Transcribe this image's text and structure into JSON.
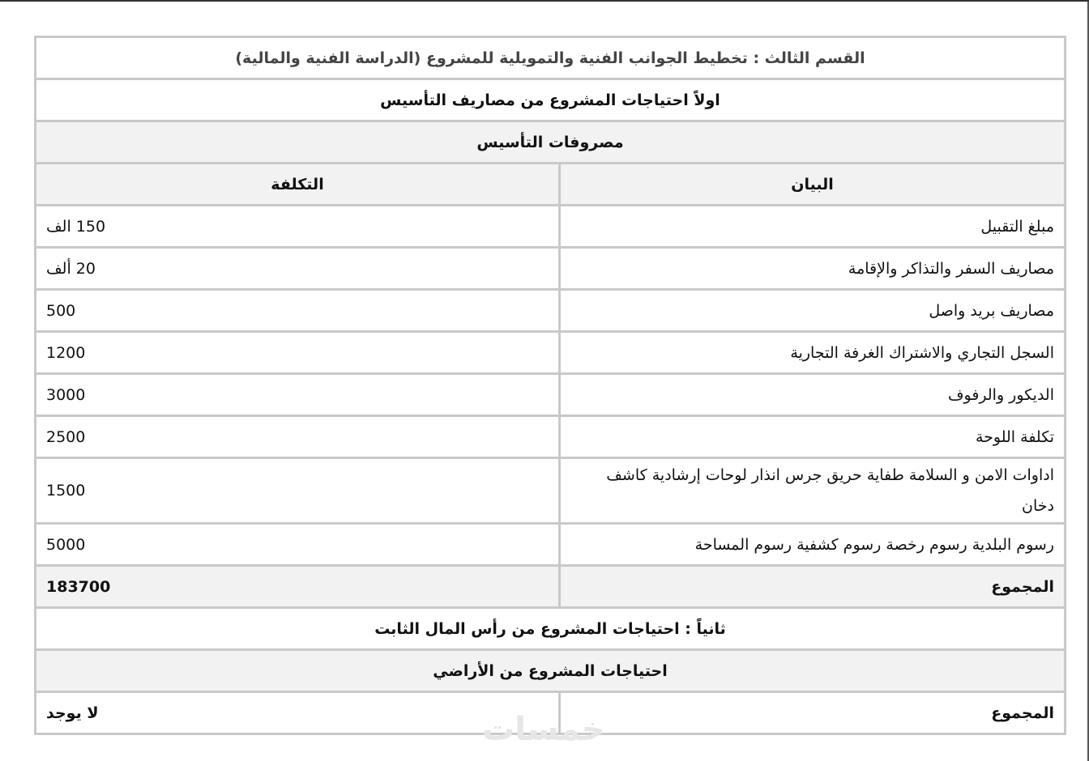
{
  "section_title": "القسم الثالث : تخطيط الجوانب الفنية والتمويلية للمشروع (الدراسة الفنية والمالية)",
  "part1_title": "اولاً احتياجات المشروع من مصاريف التأسيس",
  "table_title": "مصروفات التأسيس",
  "headers": {
    "item": "البيان",
    "cost": "التكلفة"
  },
  "rows": [
    {
      "item": "مبلغ التقبيل",
      "cost": "150 الف"
    },
    {
      "item": "مصاريف السفر والتذاكر والإقامة",
      "cost": "20 ألف"
    },
    {
      "item": "مصاريف بريد واصل",
      "cost": "500"
    },
    {
      "item": "السجل التجاري والاشتراك الغرفة التجارية",
      "cost": "1200"
    },
    {
      "item": "الديكور والرفوف",
      "cost": "3000"
    },
    {
      "item": "تكلفة اللوحة",
      "cost": "2500"
    },
    {
      "item": "اداوات الامن و السلامة طفاية حريق جرس انذار لوحات إرشادية كاشف دخان",
      "cost": "1500"
    },
    {
      "item": "رسوم البلدية رسوم رخصة رسوم كشفية رسوم المساحة",
      "cost": "5000"
    }
  ],
  "total": {
    "label": "المجموع",
    "value": "183700"
  },
  "part2_title": "ثانياً : احتياجات المشروع من رأس المال الثابت",
  "land_title": "احتياجات المشروع من الأراضي",
  "land_total": {
    "label": "المجموع",
    "value": "لا يوجد"
  },
  "watermark": "خمسات"
}
